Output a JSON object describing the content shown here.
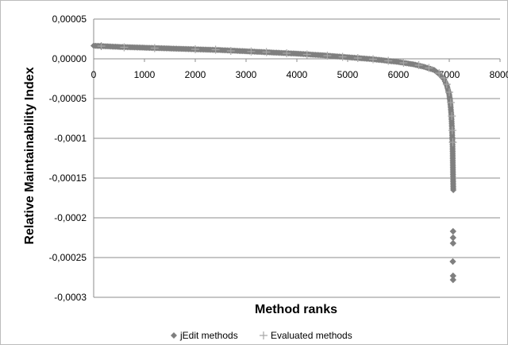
{
  "chart_data": {
    "type": "scatter",
    "title": "",
    "xlabel": "Method ranks",
    "ylabel": "Relative Maintainability Index",
    "xlim": [
      0,
      8000
    ],
    "ylim": [
      -0.0003,
      5e-05
    ],
    "x_ticks": [
      "0",
      "1000",
      "2000",
      "3000",
      "4000",
      "5000",
      "6000",
      "7000",
      "8000"
    ],
    "y_ticks": [
      "0,00005",
      "0,00000",
      "-0,00005",
      "-0,0001",
      "-0,00015",
      "-0,0002",
      "-0,00025",
      "-0,0003"
    ],
    "grid": "horizontal",
    "legend_position": "bottom",
    "series": [
      {
        "name": "jEdit methods",
        "marker": "diamond",
        "color": "#7f7f7f",
        "curve": [
          [
            0,
            1.65e-05
          ],
          [
            500,
            1.5e-05
          ],
          [
            1000,
            1.4e-05
          ],
          [
            1500,
            1.3e-05
          ],
          [
            2000,
            1.2e-05
          ],
          [
            2500,
            1.1e-05
          ],
          [
            3000,
            9.5e-06
          ],
          [
            3500,
            8e-06
          ],
          [
            4000,
            6.5e-06
          ],
          [
            4500,
            4.5e-06
          ],
          [
            5000,
            2e-06
          ],
          [
            5500,
            -5e-07
          ],
          [
            6000,
            -4e-06
          ],
          [
            6300,
            -7e-06
          ],
          [
            6500,
            -1e-05
          ],
          [
            6700,
            -1.4e-05
          ],
          [
            6800,
            -1.9e-05
          ],
          [
            6900,
            -2.6e-05
          ],
          [
            6950,
            -3.3e-05
          ],
          [
            7000,
            -4.5e-05
          ],
          [
            7020,
            -5.5e-05
          ],
          [
            7040,
            -7e-05
          ],
          [
            7055,
            -9e-05
          ],
          [
            7065,
            -0.00011
          ],
          [
            7070,
            -0.00013
          ],
          [
            7075,
            -0.00015
          ],
          [
            7080,
            -0.000165
          ]
        ],
        "outliers": [
          [
            7075,
            -0.000217
          ],
          [
            7075,
            -0.000225
          ],
          [
            7075,
            -0.000232
          ],
          [
            7070,
            -0.000255
          ],
          [
            7075,
            -0.000273
          ],
          [
            7075,
            -0.000278
          ]
        ]
      },
      {
        "name": "Evaluated methods",
        "marker": "plus",
        "color": "#a6a6a6",
        "points": [
          [
            150,
            1.6e-05
          ],
          [
            600,
            1.45e-05
          ],
          [
            1200,
            1.35e-05
          ],
          [
            2000,
            1.2e-05
          ],
          [
            2400,
            1.15e-05
          ],
          [
            2700,
            1e-05
          ],
          [
            3100,
            9.2e-06
          ],
          [
            3400,
            8.5e-06
          ],
          [
            3800,
            7e-06
          ],
          [
            4200,
            5.5e-06
          ],
          [
            4600,
            4e-06
          ],
          [
            4900,
            2.5e-06
          ],
          [
            5200,
            1e-06
          ],
          [
            5500,
            -5e-07
          ],
          [
            5800,
            -2.5e-06
          ],
          [
            6100,
            -5e-06
          ],
          [
            6400,
            -8e-06
          ],
          [
            6600,
            -1.15e-05
          ],
          [
            6800,
            -1.8e-05
          ],
          [
            6900,
            -2.4e-05
          ],
          [
            6950,
            -3.2e-05
          ],
          [
            7000,
            -4.2e-05
          ],
          [
            7030,
            -5.5e-05
          ],
          [
            7050,
            -7.2e-05
          ],
          [
            7060,
            -9e-05
          ],
          [
            7070,
            -0.000105
          ]
        ]
      }
    ]
  }
}
